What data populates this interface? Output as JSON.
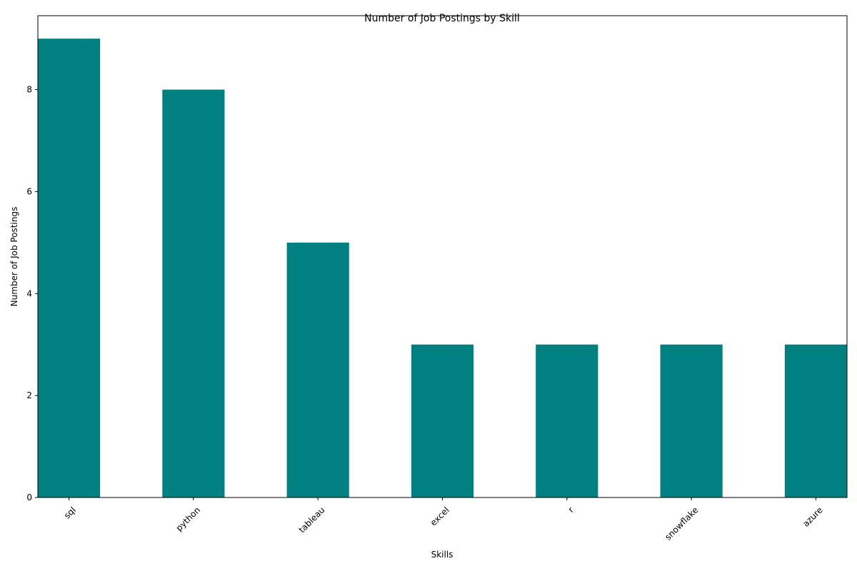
{
  "chart_data": {
    "type": "bar",
    "title": "Number of Job Postings by Skill",
    "xlabel": "Skills",
    "ylabel": "Number of Job Postings",
    "categories": [
      "sql",
      "python",
      "tableau",
      "excel",
      "r",
      "snowflake",
      "azure"
    ],
    "values": [
      9,
      8,
      5,
      3,
      3,
      3,
      3
    ],
    "ylim": [
      0,
      9.45
    ],
    "yticks": [
      0,
      2,
      4,
      6,
      8
    ],
    "bar_color": "#008080",
    "grid": false,
    "legend": "none"
  }
}
